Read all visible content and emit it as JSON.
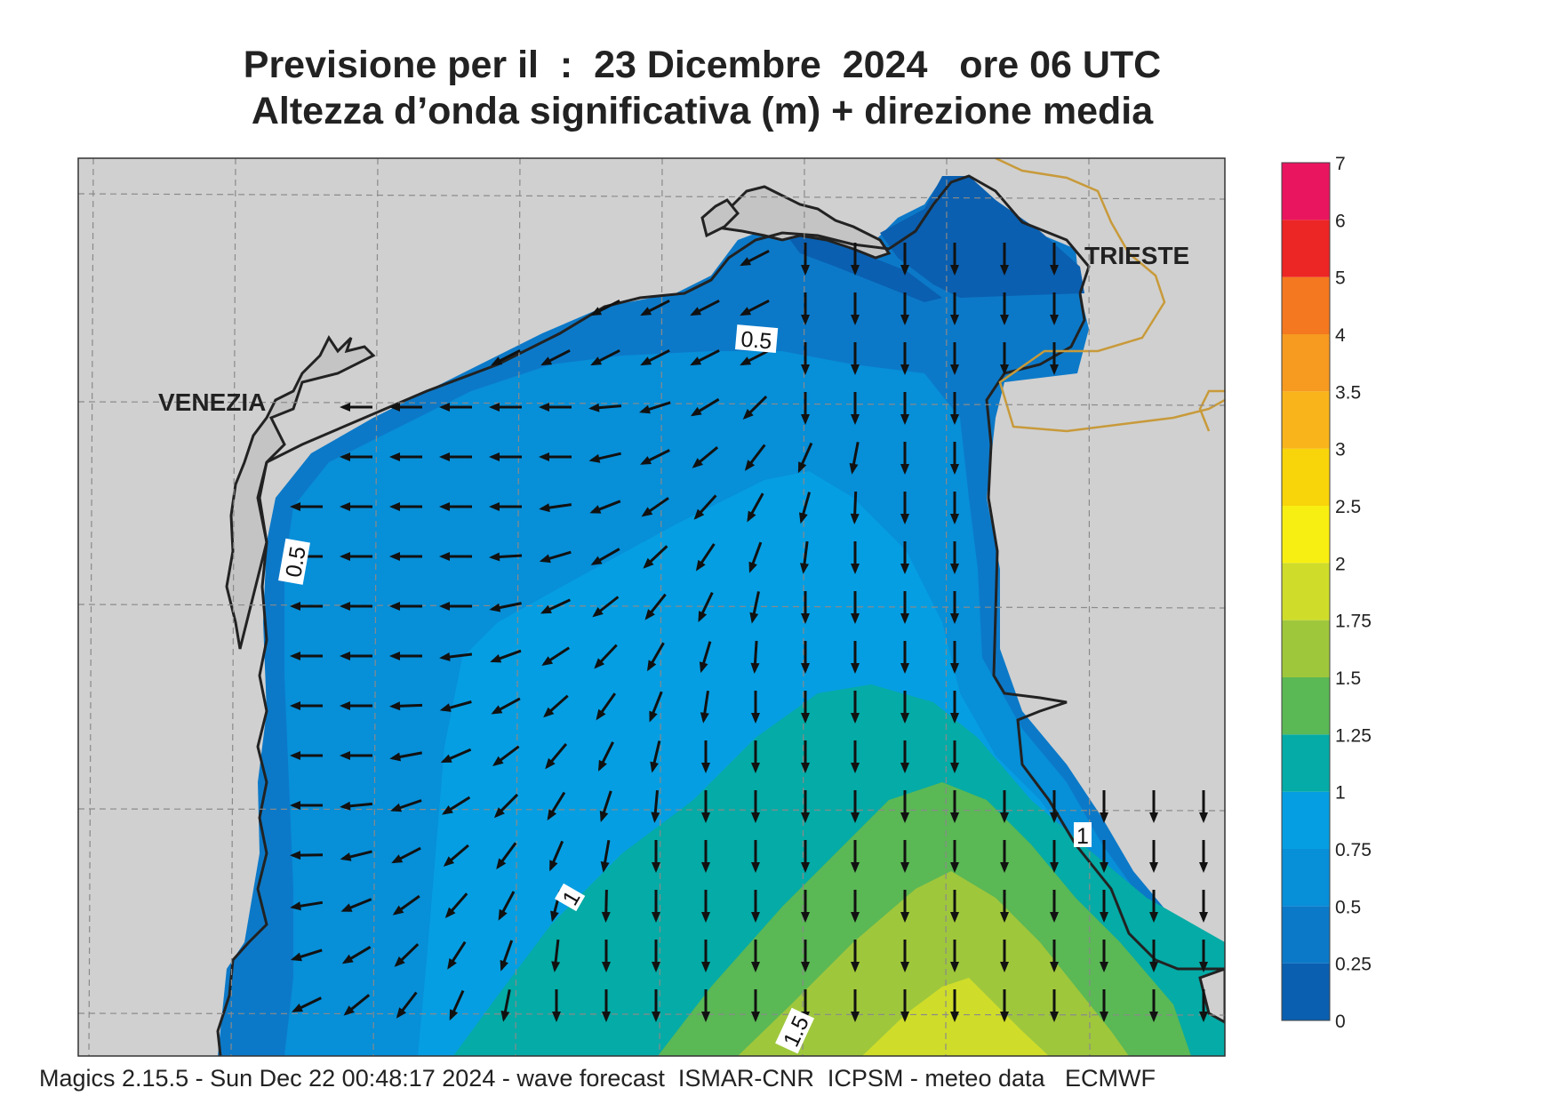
{
  "title_line1": "Previsione per il  :  23 Dicembre  2024   ore 06 UTC",
  "title_line2": "Altezza d’onda significativa (m) + direzione media",
  "footer": "Magics 2.15.5 - Sun Dec 22 00:48:17 2024 - wave forecast  ISMAR-CNR  ICPSM - meteo data   ECMWF",
  "cities": {
    "venezia": "VENEZIA",
    "trieste": "TRIESTE"
  },
  "contour_labels": [
    "0.5",
    "0.5",
    "1",
    "1",
    "1.5"
  ],
  "colorbar": {
    "levels": [
      "0",
      "0.25",
      "0.5",
      "0.75",
      "1",
      "1.25",
      "1.5",
      "1.75",
      "2",
      "2.5",
      "3",
      "3.5",
      "4",
      "5",
      "6",
      "7"
    ],
    "colors": [
      "#0a5fb0",
      "#0c79c8",
      "#078fd8",
      "#069ee2",
      "#05aba6",
      "#5ab855",
      "#9fc73c",
      "#cfdd2a",
      "#f8ef12",
      "#f8d40a",
      "#f8b41a",
      "#f79a20",
      "#f4781f",
      "#ec2525",
      "#e9155f"
    ]
  },
  "colors": {
    "land": "#d0d0d0",
    "land_shallow": "#c4c4c4",
    "border": "#c89a3a"
  }
}
